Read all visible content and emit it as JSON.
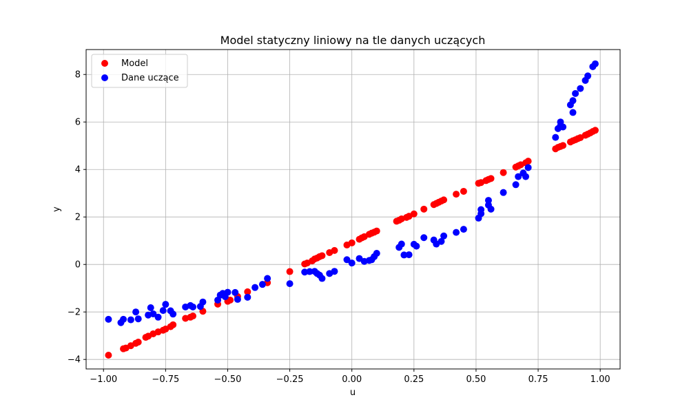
{
  "chart_data": {
    "type": "scatter",
    "title": "Model statyczny liniowy na tle danych uczących",
    "xlabel": "u",
    "ylabel": "y",
    "xlim": [
      -1.07,
      1.08
    ],
    "ylim": [
      -4.4,
      9.05
    ],
    "xticks": [
      -1.0,
      -0.75,
      -0.5,
      -0.25,
      0.0,
      0.25,
      0.5,
      0.75,
      1.0
    ],
    "xtick_labels": [
      "−1.00",
      "−0.75",
      "−0.50",
      "−0.25",
      "0.00",
      "0.25",
      "0.50",
      "0.75",
      "1.00"
    ],
    "yticks": [
      -4,
      -2,
      0,
      2,
      4,
      6,
      8
    ],
    "ytick_labels": [
      "−4",
      "−2",
      "0",
      "2",
      "4",
      "6",
      "8"
    ],
    "grid": true,
    "legend_position": "top-left",
    "series": [
      {
        "name": "Model",
        "color": "#ff0000",
        "points": [
          [
            -0.98,
            -3.82
          ],
          [
            -0.92,
            -3.55
          ],
          [
            -0.91,
            -3.52
          ],
          [
            -0.89,
            -3.42
          ],
          [
            -0.87,
            -3.32
          ],
          [
            -0.86,
            -3.27
          ],
          [
            -0.83,
            -3.07
          ],
          [
            -0.82,
            -3.02
          ],
          [
            -0.8,
            -2.92
          ],
          [
            -0.78,
            -2.84
          ],
          [
            -0.76,
            -2.77
          ],
          [
            -0.75,
            -2.72
          ],
          [
            -0.73,
            -2.62
          ],
          [
            -0.72,
            -2.54
          ],
          [
            -0.67,
            -2.27
          ],
          [
            -0.65,
            -2.22
          ],
          [
            -0.64,
            -2.17
          ],
          [
            -0.6,
            -1.97
          ],
          [
            -0.54,
            -1.67
          ],
          [
            -0.5,
            -1.55
          ],
          [
            -0.49,
            -1.5
          ],
          [
            -0.46,
            -1.35
          ],
          [
            -0.42,
            -1.15
          ],
          [
            -0.34,
            -0.77
          ],
          [
            -0.25,
            -0.3
          ],
          [
            -0.19,
            0.02
          ],
          [
            -0.18,
            0.06
          ],
          [
            -0.16,
            0.15
          ],
          [
            -0.15,
            0.23
          ],
          [
            -0.14,
            0.27
          ],
          [
            -0.13,
            0.33
          ],
          [
            -0.12,
            0.37
          ],
          [
            -0.09,
            0.5
          ],
          [
            -0.07,
            0.59
          ],
          [
            -0.02,
            0.82
          ],
          [
            0.0,
            0.91
          ],
          [
            0.03,
            1.06
          ],
          [
            0.04,
            1.12
          ],
          [
            0.05,
            1.17
          ],
          [
            0.07,
            1.27
          ],
          [
            0.08,
            1.32
          ],
          [
            0.09,
            1.36
          ],
          [
            0.1,
            1.41
          ],
          [
            0.18,
            1.82
          ],
          [
            0.19,
            1.86
          ],
          [
            0.2,
            1.92
          ],
          [
            0.22,
            1.98
          ],
          [
            0.23,
            2.03
          ],
          [
            0.25,
            2.13
          ],
          [
            0.29,
            2.33
          ],
          [
            0.33,
            2.52
          ],
          [
            0.34,
            2.57
          ],
          [
            0.35,
            2.62
          ],
          [
            0.36,
            2.67
          ],
          [
            0.37,
            2.72
          ],
          [
            0.42,
            2.96
          ],
          [
            0.45,
            3.08
          ],
          [
            0.51,
            3.42
          ],
          [
            0.52,
            3.45
          ],
          [
            0.54,
            3.53
          ],
          [
            0.55,
            3.58
          ],
          [
            0.56,
            3.62
          ],
          [
            0.61,
            3.87
          ],
          [
            0.66,
            4.1
          ],
          [
            0.67,
            4.15
          ],
          [
            0.68,
            4.2
          ],
          [
            0.7,
            4.28
          ],
          [
            0.71,
            4.35
          ],
          [
            0.82,
            4.87
          ],
          [
            0.83,
            4.93
          ],
          [
            0.84,
            4.97
          ],
          [
            0.85,
            5.01
          ],
          [
            0.88,
            5.16
          ],
          [
            0.89,
            5.21
          ],
          [
            0.9,
            5.25
          ],
          [
            0.91,
            5.3
          ],
          [
            0.92,
            5.34
          ],
          [
            0.94,
            5.44
          ],
          [
            0.95,
            5.49
          ],
          [
            0.96,
            5.54
          ],
          [
            0.97,
            5.6
          ],
          [
            0.98,
            5.65
          ]
        ]
      },
      {
        "name": "Dane uczące",
        "color": "#0000ff",
        "points": [
          [
            -0.98,
            -2.31
          ],
          [
            -0.93,
            -2.45
          ],
          [
            -0.92,
            -2.31
          ],
          [
            -0.89,
            -2.33
          ],
          [
            -0.87,
            -2.0
          ],
          [
            -0.86,
            -2.29
          ],
          [
            -0.82,
            -2.13
          ],
          [
            -0.81,
            -1.82
          ],
          [
            -0.8,
            -2.08
          ],
          [
            -0.78,
            -2.22
          ],
          [
            -0.76,
            -1.94
          ],
          [
            -0.75,
            -1.68
          ],
          [
            -0.73,
            -1.95
          ],
          [
            -0.72,
            -2.09
          ],
          [
            -0.67,
            -1.79
          ],
          [
            -0.65,
            -1.73
          ],
          [
            -0.64,
            -1.79
          ],
          [
            -0.61,
            -1.77
          ],
          [
            -0.6,
            -1.58
          ],
          [
            -0.54,
            -1.5
          ],
          [
            -0.53,
            -1.29
          ],
          [
            -0.52,
            -1.22
          ],
          [
            -0.51,
            -1.36
          ],
          [
            -0.5,
            -1.17
          ],
          [
            -0.47,
            -1.18
          ],
          [
            -0.46,
            -1.47
          ],
          [
            -0.42,
            -1.38
          ],
          [
            -0.39,
            -0.97
          ],
          [
            -0.36,
            -0.84
          ],
          [
            -0.34,
            -0.59
          ],
          [
            -0.25,
            -0.81
          ],
          [
            -0.19,
            -0.32
          ],
          [
            -0.17,
            -0.3
          ],
          [
            -0.15,
            -0.29
          ],
          [
            -0.14,
            -0.38
          ],
          [
            -0.13,
            -0.45
          ],
          [
            -0.12,
            -0.59
          ],
          [
            -0.09,
            -0.38
          ],
          [
            -0.07,
            -0.29
          ],
          [
            -0.02,
            0.2
          ],
          [
            0.0,
            0.06
          ],
          [
            0.03,
            0.25
          ],
          [
            0.05,
            0.13
          ],
          [
            0.07,
            0.17
          ],
          [
            0.08,
            0.2
          ],
          [
            0.09,
            0.33
          ],
          [
            0.1,
            0.47
          ],
          [
            0.19,
            0.72
          ],
          [
            0.2,
            0.86
          ],
          [
            0.21,
            0.4
          ],
          [
            0.23,
            0.41
          ],
          [
            0.25,
            0.85
          ],
          [
            0.26,
            0.77
          ],
          [
            0.29,
            1.13
          ],
          [
            0.33,
            1.03
          ],
          [
            0.34,
            0.86
          ],
          [
            0.36,
            0.97
          ],
          [
            0.37,
            1.2
          ],
          [
            0.42,
            1.35
          ],
          [
            0.45,
            1.48
          ],
          [
            0.51,
            1.95
          ],
          [
            0.52,
            2.14
          ],
          [
            0.52,
            2.31
          ],
          [
            0.55,
            2.5
          ],
          [
            0.55,
            2.7
          ],
          [
            0.56,
            2.33
          ],
          [
            0.61,
            3.03
          ],
          [
            0.66,
            3.36
          ],
          [
            0.67,
            3.7
          ],
          [
            0.69,
            3.85
          ],
          [
            0.7,
            3.7
          ],
          [
            0.71,
            4.08
          ],
          [
            0.82,
            5.35
          ],
          [
            0.83,
            5.72
          ],
          [
            0.84,
            6.0
          ],
          [
            0.84,
            5.84
          ],
          [
            0.85,
            5.79
          ],
          [
            0.88,
            6.72
          ],
          [
            0.89,
            6.9
          ],
          [
            0.89,
            6.4
          ],
          [
            0.9,
            7.2
          ],
          [
            0.92,
            7.41
          ],
          [
            0.94,
            7.75
          ],
          [
            0.95,
            7.94
          ],
          [
            0.97,
            8.33
          ],
          [
            0.98,
            8.45
          ]
        ]
      }
    ]
  }
}
